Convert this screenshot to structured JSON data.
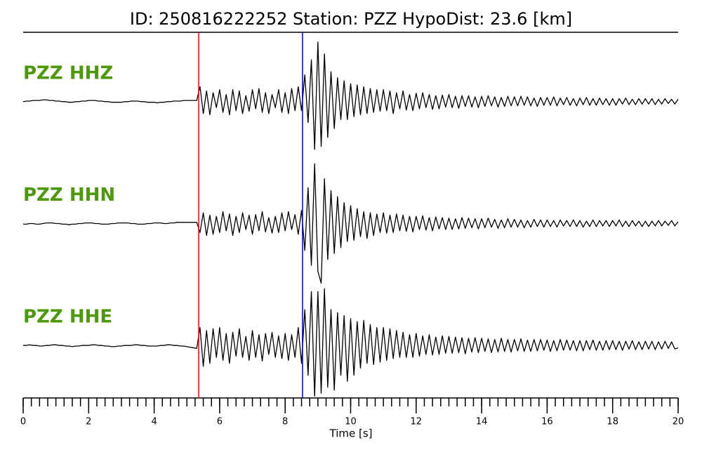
{
  "chart_data": {
    "type": "line",
    "layout": "stacked",
    "title": "ID: 250816222252   Station: PZZ   HypoDist:    23.6 [km]",
    "xlabel": "Time [s]",
    "xlim": [
      0,
      20
    ],
    "xticks": [
      0,
      2,
      4,
      6,
      8,
      10,
      12,
      14,
      16,
      18,
      20
    ],
    "xminor_step": 0.25,
    "ylim": [
      -1,
      1
    ],
    "label_color": "#4c9a0a",
    "markers": [
      {
        "x": 5.36,
        "color": "#ff0000"
      },
      {
        "x": 8.53,
        "color": "#0000cc"
      }
    ],
    "x": [
      0,
      0.1,
      0.2,
      0.3,
      0.4,
      0.5,
      0.6,
      0.7,
      0.8,
      0.9,
      1,
      1.1,
      1.2,
      1.3,
      1.4,
      1.5,
      1.6,
      1.7,
      1.8,
      1.9,
      2,
      2.1,
      2.2,
      2.3,
      2.4,
      2.5,
      2.6,
      2.7,
      2.8,
      2.9,
      3,
      3.1,
      3.2,
      3.3,
      3.4,
      3.5,
      3.6,
      3.7,
      3.8,
      3.9,
      4,
      4.1,
      4.2,
      4.3,
      4.4,
      4.5,
      4.6,
      4.7,
      4.8,
      4.9,
      5,
      5.1,
      5.2,
      5.3,
      5.4,
      5.5,
      5.6,
      5.7,
      5.8,
      5.9,
      6,
      6.1,
      6.2,
      6.3,
      6.4,
      6.5,
      6.6,
      6.7,
      6.8,
      6.9,
      7,
      7.1,
      7.2,
      7.3,
      7.4,
      7.5,
      7.6,
      7.7,
      7.8,
      7.9,
      8,
      8.1,
      8.2,
      8.3,
      8.4,
      8.5,
      8.6,
      8.7,
      8.8,
      8.9,
      9,
      9.1,
      9.2,
      9.3,
      9.4,
      9.5,
      9.6,
      9.7,
      9.8,
      9.9,
      10,
      10.1,
      10.2,
      10.3,
      10.4,
      10.5,
      10.6,
      10.7,
      10.8,
      10.9,
      11,
      11.1,
      11.2,
      11.3,
      11.4,
      11.5,
      11.6,
      11.7,
      11.8,
      11.9,
      12,
      12.1,
      12.2,
      12.3,
      12.4,
      12.5,
      12.6,
      12.7,
      12.8,
      12.9,
      13,
      13.1,
      13.2,
      13.3,
      13.4,
      13.5,
      13.6,
      13.7,
      13.8,
      13.9,
      14,
      14.1,
      14.2,
      14.3,
      14.4,
      14.5,
      14.6,
      14.7,
      14.8,
      14.9,
      15,
      15.1,
      15.2,
      15.3,
      15.4,
      15.5,
      15.6,
      15.7,
      15.8,
      15.9,
      16,
      16.1,
      16.2,
      16.3,
      16.4,
      16.5,
      16.6,
      16.7,
      16.8,
      16.9,
      17,
      17.1,
      17.2,
      17.3,
      17.4,
      17.5,
      17.6,
      17.7,
      17.8,
      17.9,
      18,
      18.1,
      18.2,
      18.3,
      18.4,
      18.5,
      18.6,
      18.7,
      18.8,
      18.9,
      19,
      19.1,
      19.2,
      19.3,
      19.4,
      19.5,
      19.6,
      19.7,
      19.8,
      19.9,
      20
    ],
    "series": [
      {
        "name": "PZZ HHZ",
        "color": "#000000",
        "values": [
          0,
          0.01,
          0.01,
          0.02,
          0.02,
          0.02,
          0.03,
          0.03,
          0.02,
          0.02,
          0.01,
          0.01,
          0,
          0,
          -0.01,
          -0.01,
          0,
          0,
          0.01,
          0.01,
          0.02,
          0.02,
          0.02,
          0.01,
          0.01,
          0,
          0,
          -0.01,
          -0.01,
          -0.01,
          -0.01,
          0,
          0,
          0.01,
          0.01,
          0.01,
          0,
          0,
          -0.01,
          -0.01,
          -0.01,
          -0.02,
          -0.01,
          -0.01,
          0,
          0,
          0.01,
          0.01,
          0.01,
          0.02,
          0.02,
          0.02,
          0.02,
          0.02,
          0.25,
          -0.2,
          0.18,
          -0.22,
          0.15,
          -0.1,
          0.2,
          -0.18,
          0.12,
          -0.22,
          0.2,
          -0.15,
          0.18,
          -0.2,
          0.1,
          -0.16,
          0.2,
          -0.12,
          0.22,
          -0.18,
          0.15,
          -0.2,
          0.12,
          -0.1,
          0.2,
          -0.18,
          0.15,
          -0.2,
          0.22,
          -0.15,
          0.25,
          -0.15,
          0.45,
          -0.35,
          0.7,
          -0.8,
          1,
          -0.75,
          0.8,
          -0.6,
          0.5,
          -0.45,
          0.4,
          -0.3,
          0.35,
          -0.3,
          0.3,
          -0.25,
          0.28,
          -0.22,
          0.25,
          -0.2,
          0.22,
          -0.18,
          0.2,
          -0.16,
          0.2,
          -0.15,
          0.18,
          -0.2,
          0.15,
          -0.12,
          0.18,
          -0.14,
          0.12,
          -0.15,
          0.14,
          -0.12,
          0.15,
          -0.1,
          0.12,
          -0.13,
          0.1,
          -0.12,
          0.11,
          -0.09,
          0.12,
          -0.1,
          0.09,
          -0.11,
          0.1,
          -0.08,
          0.1,
          -0.09,
          0.08,
          -0.1,
          0.09,
          -0.08,
          0.1,
          -0.07,
          0.08,
          -0.09,
          0.07,
          -0.08,
          0.09,
          -0.07,
          0.08,
          -0.07,
          0.09,
          -0.06,
          0.08,
          -0.07,
          0.06,
          -0.08,
          0.07,
          -0.06,
          0.07,
          -0.06,
          0.08,
          -0.07,
          0.06,
          -0.05,
          0.07,
          -0.06,
          0.05,
          -0.07,
          0.06,
          -0.05,
          0.07,
          -0.06,
          0.05,
          -0.06,
          0.06,
          -0.05,
          0.05,
          -0.06,
          0.05,
          -0.06,
          0.05,
          -0.04,
          0.06,
          -0.05,
          0.04,
          -0.05,
          0.05,
          -0.04,
          0.05,
          -0.04,
          0.05,
          -0.05,
          0.04,
          -0.04,
          0.05,
          -0.03,
          0.04,
          -0.04,
          0.04
        ]
      },
      {
        "name": "PZZ HHN",
        "color": "#000000",
        "values": [
          -0.01,
          -0.01,
          0,
          0,
          -0.01,
          -0.01,
          0,
          0.01,
          0.01,
          0.01,
          0,
          0,
          -0.01,
          -0.01,
          -0.02,
          -0.01,
          -0.01,
          0,
          0,
          0.01,
          0.01,
          0.01,
          0,
          0,
          -0.01,
          -0.01,
          -0.01,
          0,
          0,
          0.01,
          0.01,
          0.01,
          0.01,
          0,
          0,
          -0.01,
          -0.01,
          -0.01,
          0,
          0,
          0.01,
          0.01,
          0.01,
          0,
          0,
          0.01,
          0.01,
          0.02,
          0.02,
          0.02,
          0.02,
          0.02,
          0.02,
          0.02,
          -0.15,
          0.18,
          -0.2,
          0.14,
          -0.18,
          0.12,
          -0.15,
          0.2,
          -0.12,
          0.16,
          -0.2,
          0.12,
          -0.15,
          0.18,
          -0.1,
          0.14,
          -0.18,
          0.15,
          -0.12,
          0.2,
          -0.14,
          0.1,
          -0.16,
          0.12,
          -0.15,
          0.18,
          -0.12,
          0.2,
          -0.1,
          0.15,
          -0.18,
          0.22,
          -0.45,
          0.6,
          -0.7,
          1,
          -0.8,
          -1,
          0.75,
          -0.6,
          0.55,
          -0.5,
          0.45,
          -0.4,
          0.35,
          -0.3,
          0.3,
          -0.28,
          0.25,
          -0.22,
          0.2,
          -0.25,
          0.18,
          -0.2,
          0.16,
          -0.15,
          0.18,
          -0.16,
          0.14,
          -0.15,
          0.16,
          -0.12,
          0.14,
          -0.13,
          0.12,
          -0.14,
          0.12,
          -0.1,
          0.13,
          -0.11,
          0.1,
          -0.12,
          0.11,
          -0.09,
          0.1,
          -0.1,
          0.09,
          -0.1,
          0.08,
          -0.09,
          0.1,
          -0.08,
          0.09,
          -0.07,
          0.08,
          -0.09,
          0.08,
          -0.07,
          0.09,
          -0.06,
          0.07,
          -0.08,
          0.06,
          -0.07,
          0.08,
          -0.06,
          0.07,
          -0.06,
          0.06,
          -0.07,
          0.05,
          -0.06,
          0.07,
          -0.05,
          0.06,
          -0.06,
          0.06,
          -0.05,
          0.05,
          -0.06,
          0.06,
          -0.04,
          0.05,
          -0.05,
          0.06,
          -0.05,
          0.05,
          -0.06,
          0.04,
          -0.05,
          0.06,
          -0.05,
          0.05,
          -0.04,
          0.05,
          -0.05,
          0.05,
          -0.04,
          0.06,
          -0.05,
          0.04,
          -0.05,
          0.05,
          -0.04,
          0.04,
          -0.05,
          0.04,
          -0.05,
          0.04,
          -0.04,
          0.05,
          -0.04,
          0.04,
          -0.03,
          0.05,
          -0.04,
          0.03
        ]
      },
      {
        "name": "PZZ HHE",
        "color": "#000000",
        "values": [
          0,
          0,
          0.01,
          0,
          0,
          -0.01,
          -0.01,
          0,
          0,
          0.01,
          0.01,
          0,
          0,
          -0.01,
          -0.01,
          -0.02,
          -0.01,
          -0.01,
          0,
          0,
          0,
          0.01,
          0.01,
          0,
          0,
          -0.01,
          -0.01,
          -0.02,
          -0.02,
          -0.01,
          -0.01,
          0,
          0,
          0,
          0.01,
          0.01,
          0,
          0,
          -0.01,
          -0.01,
          -0.01,
          -0.01,
          0,
          0,
          0.01,
          0.01,
          0,
          0,
          -0.01,
          -0.01,
          -0.02,
          -0.03,
          -0.04,
          -0.05,
          0.3,
          -0.35,
          0.25,
          -0.3,
          0.28,
          -0.2,
          0.3,
          -0.25,
          0.2,
          -0.3,
          0.22,
          -0.18,
          0.28,
          -0.2,
          0.15,
          -0.25,
          0.25,
          -0.2,
          0.18,
          -0.26,
          0.2,
          -0.15,
          0.22,
          -0.2,
          0.16,
          -0.22,
          0.2,
          -0.25,
          0.18,
          -0.2,
          0.3,
          -0.3,
          0.6,
          -0.5,
          0.9,
          -0.85,
          0.9,
          -0.8,
          0.95,
          -0.7,
          0.6,
          -0.75,
          0.55,
          -0.5,
          0.5,
          -0.6,
          0.45,
          -0.5,
          0.4,
          -0.38,
          0.42,
          -0.3,
          0.35,
          -0.32,
          0.3,
          -0.28,
          0.3,
          -0.25,
          0.28,
          -0.22,
          0.25,
          -0.2,
          0.22,
          -0.2,
          0.18,
          -0.2,
          0.2,
          -0.18,
          0.16,
          -0.15,
          0.18,
          -0.16,
          0.14,
          -0.15,
          0.16,
          -0.13,
          0.15,
          -0.13,
          0.14,
          -0.12,
          0.13,
          -0.14,
          0.12,
          -0.11,
          0.13,
          -0.12,
          0.12,
          -0.1,
          0.11,
          -0.12,
          0.1,
          -0.11,
          0.12,
          -0.1,
          0.1,
          -0.11,
          0.1,
          -0.09,
          0.11,
          -0.1,
          0.09,
          -0.1,
          0.1,
          -0.09,
          0.1,
          -0.08,
          0.09,
          -0.1,
          0.08,
          -0.09,
          0.1,
          -0.08,
          0.09,
          -0.08,
          0.08,
          -0.09,
          0.08,
          -0.09,
          0.08,
          -0.07,
          0.09,
          -0.08,
          0.07,
          -0.08,
          0.08,
          -0.07,
          0.08,
          -0.07,
          0.07,
          -0.08,
          0.07,
          -0.06,
          0.08,
          -0.07,
          0.06,
          -0.07,
          0.07,
          -0.06,
          0.07,
          -0.07,
          0.06,
          -0.06,
          0.07,
          -0.05,
          0.06,
          -0.06,
          -0.04
        ]
      }
    ]
  }
}
